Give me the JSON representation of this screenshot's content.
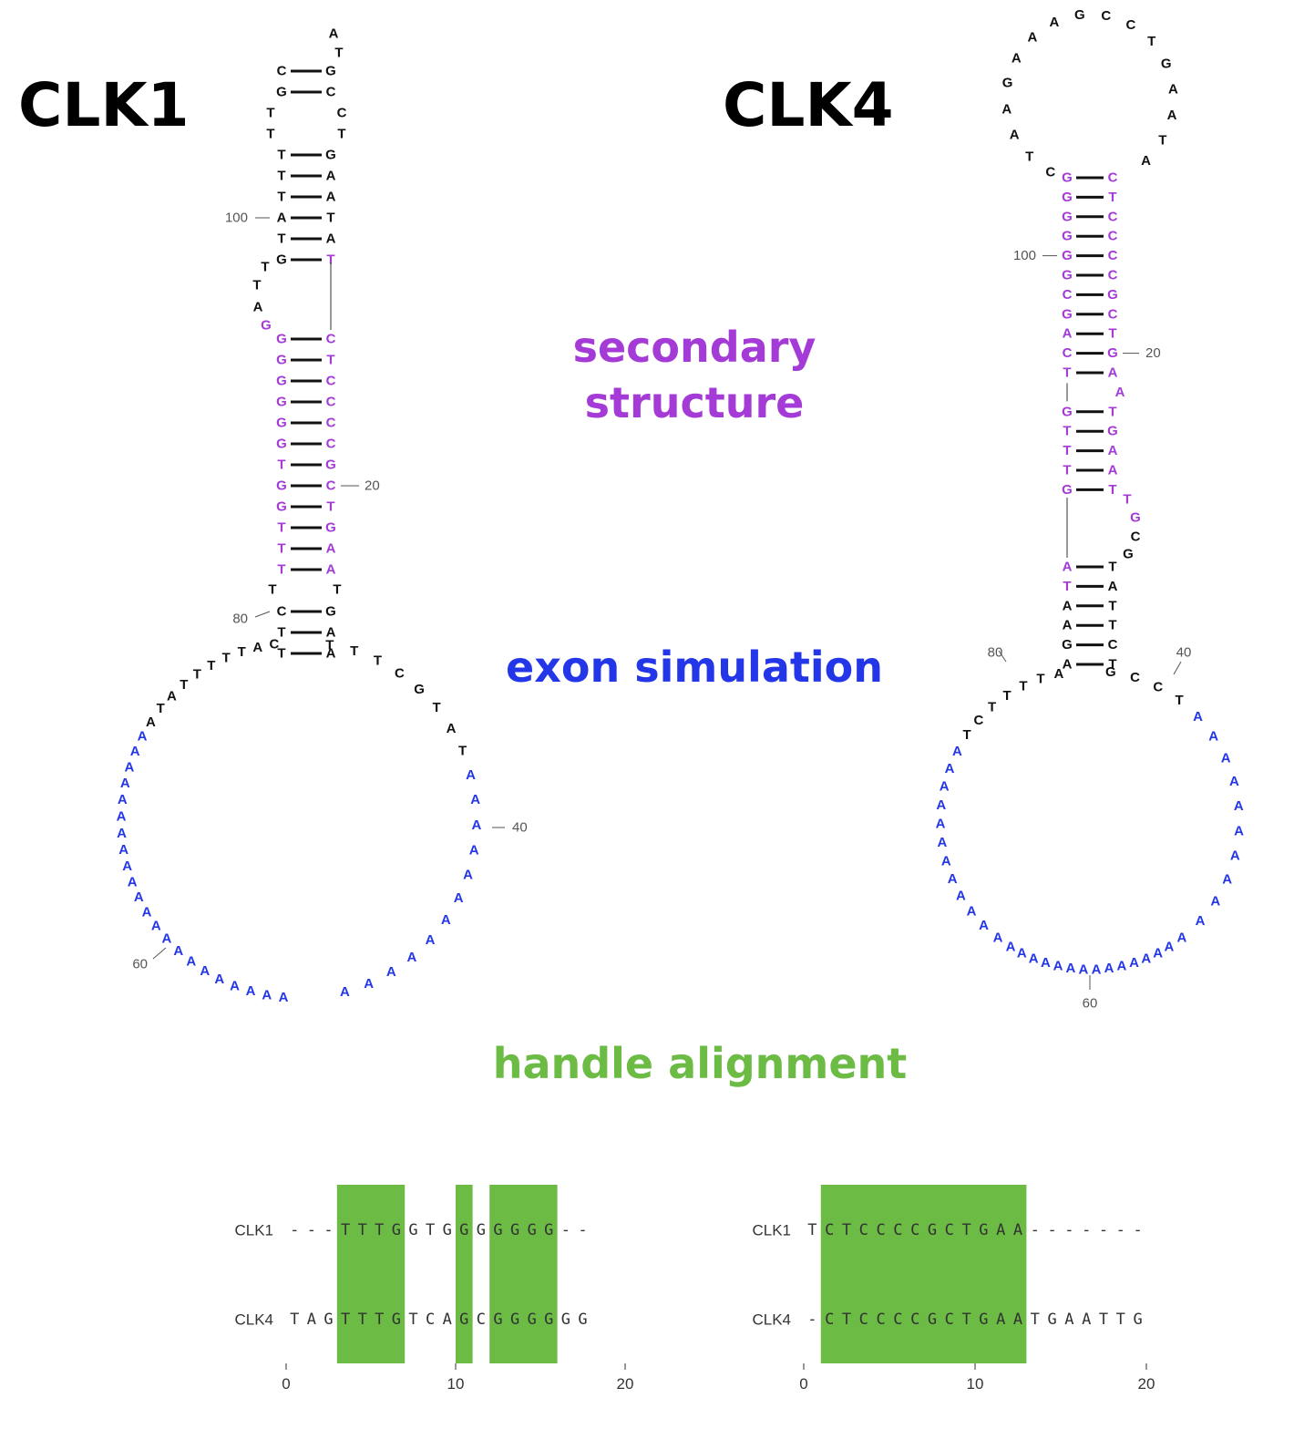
{
  "colors": {
    "default": "#111111",
    "structure": "#a43bd6",
    "exon": "#2337e8",
    "alignment": "#6bbb44",
    "label": "#555555"
  },
  "captions": {
    "secondary": [
      "secondary",
      "structure"
    ],
    "exon": "exon simulation",
    "alignment": "handle alignment"
  },
  "panels": [
    {
      "title": "CLK1",
      "stem_rows": [
        {
          "l": "C",
          "r": "G"
        },
        {
          "l": "G",
          "r": "C"
        },
        {
          "l": "T",
          "r": "C",
          "open": true
        },
        {
          "l": "T",
          "r": "T",
          "open": true
        },
        {
          "l": "T",
          "r": "G"
        },
        {
          "l": "T",
          "r": "A"
        },
        {
          "l": "T",
          "r": "A"
        },
        {
          "l": "A",
          "r": "T",
          "num": "100",
          "numSide": "left"
        },
        {
          "l": "T",
          "r": "A"
        },
        {
          "l": "G",
          "r": "T",
          "rc": "structure"
        },
        {
          "gap": true
        },
        {
          "gap": true
        },
        {
          "gap": true
        },
        {
          "gap": true
        },
        {
          "l": "G",
          "r": "C",
          "lc": "structure",
          "rc": "structure"
        },
        {
          "l": "G",
          "r": "T",
          "lc": "structure",
          "rc": "structure"
        },
        {
          "l": "G",
          "r": "C",
          "lc": "structure",
          "rc": "structure"
        },
        {
          "l": "G",
          "r": "C",
          "lc": "structure",
          "rc": "structure"
        },
        {
          "l": "G",
          "r": "C",
          "lc": "structure",
          "rc": "structure"
        },
        {
          "l": "G",
          "r": "C",
          "lc": "structure",
          "rc": "structure"
        },
        {
          "l": "T",
          "r": "G",
          "lc": "structure",
          "rc": "structure"
        },
        {
          "l": "G",
          "r": "C",
          "lc": "structure",
          "rc": "structure",
          "num": "20",
          "numSide": "right"
        },
        {
          "l": "G",
          "r": "T",
          "lc": "structure",
          "rc": "structure"
        },
        {
          "l": "T",
          "r": "G",
          "lc": "structure",
          "rc": "structure"
        },
        {
          "l": "T",
          "r": "A",
          "lc": "structure",
          "rc": "structure"
        },
        {
          "l": "T",
          "r": "A",
          "lc": "structure",
          "rc": "structure"
        },
        {
          "l": "T",
          "r": "T",
          "open": true
        },
        {
          "l": "C",
          "r": "G",
          "num": "80",
          "numSide": "left"
        },
        {
          "l": "T",
          "r": "A"
        },
        {
          "l": "T",
          "r": "A"
        }
      ],
      "hairpin_loop": "AT",
      "bulge": [
        "T",
        "T",
        "A",
        "G"
      ],
      "bulge_colors": [
        "default",
        "default",
        "default",
        "structure"
      ],
      "big_loop_left": "CATTTTTATAAAAAAA",
      "big_loop_bottom": "AAAAAAAAAAAAAAAA",
      "big_loop_right": "TTTCGTATAAAAAAAAAAAA",
      "loop_numbers": [
        {
          "text": "40"
        },
        {
          "text": "60"
        }
      ]
    },
    {
      "title": "CLK4",
      "stem_rows": [
        {
          "l": "G",
          "r": "C",
          "lc": "structure",
          "rc": "structure"
        },
        {
          "l": "G",
          "r": "T",
          "lc": "structure",
          "rc": "structure"
        },
        {
          "l": "G",
          "r": "C",
          "lc": "structure",
          "rc": "structure"
        },
        {
          "l": "G",
          "r": "C",
          "lc": "structure",
          "rc": "structure"
        },
        {
          "l": "G",
          "r": "C",
          "lc": "structure",
          "rc": "structure",
          "num": "100",
          "numSide": "left"
        },
        {
          "l": "G",
          "r": "C",
          "lc": "structure",
          "rc": "structure"
        },
        {
          "l": "C",
          "r": "G",
          "lc": "structure",
          "rc": "structure"
        },
        {
          "l": "G",
          "r": "C",
          "lc": "structure",
          "rc": "structure"
        },
        {
          "l": "A",
          "r": "T",
          "lc": "structure",
          "rc": "structure"
        },
        {
          "l": "C",
          "r": "G",
          "lc": "structure",
          "rc": "structure",
          "num": "20",
          "numSide": "right"
        },
        {
          "l": "T",
          "r": "A",
          "lc": "structure",
          "rc": "structure"
        },
        {
          "gapL": true,
          "extraR": "A",
          "extraRc": "structure"
        },
        {
          "l": "G",
          "r": "T",
          "lc": "structure",
          "rc": "structure"
        },
        {
          "l": "T",
          "r": "G",
          "lc": "structure",
          "rc": "structure"
        },
        {
          "l": "T",
          "r": "A",
          "lc": "structure",
          "rc": "structure"
        },
        {
          "l": "T",
          "r": "A",
          "lc": "structure",
          "rc": "structure"
        },
        {
          "l": "G",
          "r": "T",
          "lc": "structure",
          "rc": "structure"
        },
        {
          "gap": true
        },
        {
          "gap": true
        },
        {
          "gap": true
        },
        {
          "l": "A",
          "r": "T",
          "lc": "structure"
        },
        {
          "l": "T",
          "r": "A",
          "lc": "structure"
        },
        {
          "l": "A",
          "r": "T"
        },
        {
          "l": "A",
          "r": "T"
        },
        {
          "l": "G",
          "r": "C"
        },
        {
          "l": "A",
          "r": "T"
        }
      ],
      "top_loop": "CTAAGAAAGCCTGAATA",
      "bulge": [
        "T",
        "G",
        "C",
        "G"
      ],
      "bulge_colors": [
        "structure",
        "structure",
        "default",
        "default"
      ],
      "big_loop_left": "ATTTTCTAAAAAAAAAAAA",
      "big_loop_bottom": "AAAAAAAAAAAAAA",
      "big_loop_right": "GCCTAAAAAAAAAAA",
      "loop_numbers": [
        {
          "text": "80"
        },
        {
          "text": "40"
        },
        {
          "text": "60"
        }
      ]
    }
  ],
  "alignments": [
    {
      "rows": [
        {
          "name": "CLK1",
          "seq": "---TTTGGTGGGGGGG--"
        },
        {
          "name": "CLK4",
          "seq": "TAGTTTGTCAGCGGGGGG"
        }
      ],
      "highlights": [
        [
          3,
          7
        ],
        [
          10,
          11
        ],
        [
          12,
          16
        ]
      ],
      "ticks": [
        "0",
        "10",
        "20"
      ]
    },
    {
      "rows": [
        {
          "name": "CLK1",
          "seq": "TCTCCCCGCTGAA-------"
        },
        {
          "name": "CLK4",
          "seq": "-CTCCCCGCTGAATGAATTG"
        }
      ],
      "highlights": [
        [
          1,
          13
        ]
      ],
      "ticks": [
        "0",
        "10",
        "20"
      ]
    }
  ]
}
